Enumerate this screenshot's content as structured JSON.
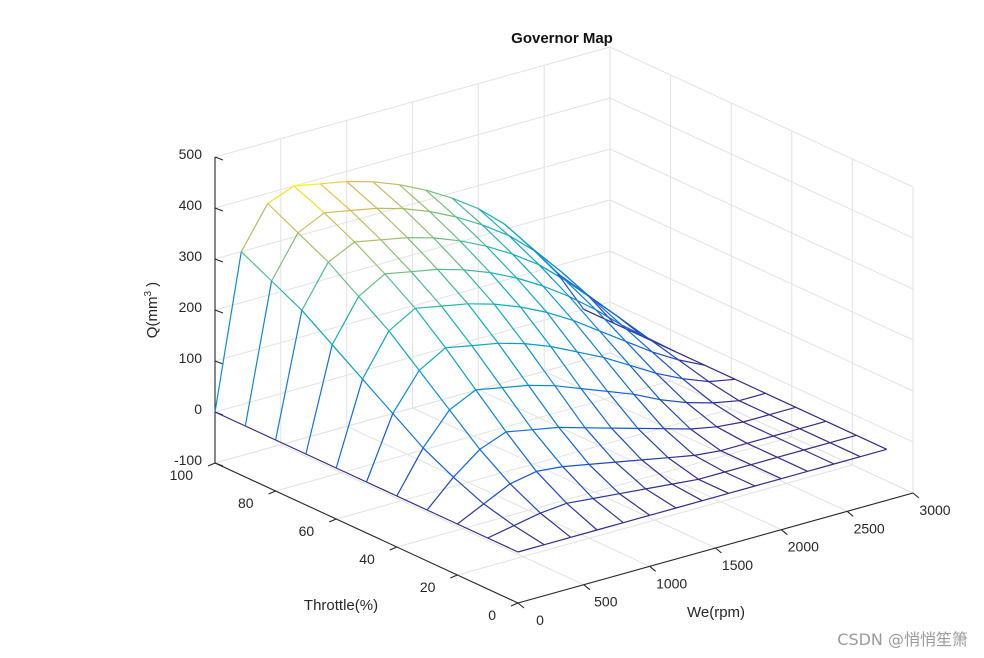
{
  "chart_data": {
    "type": "surface",
    "title": "Governor Map",
    "xlabel": "We(rpm)",
    "ylabel": "Throttle(%)",
    "zlabel": "Q(mm",
    "zlabel_sup": "3",
    "zlabel_end": " )",
    "xlim": [
      0,
      3000
    ],
    "ylim": [
      0,
      100
    ],
    "zlim": [
      -100,
      500
    ],
    "x_ticks": [
      "0",
      "500",
      "1000",
      "1500",
      "2000",
      "2500",
      "3000"
    ],
    "y_ticks": [
      "0",
      "20",
      "40",
      "60",
      "80",
      "100"
    ],
    "z_ticks": [
      "-100",
      "0",
      "100",
      "200",
      "300",
      "400",
      "500"
    ],
    "grid": true,
    "colormap": "parula",
    "speed_rpm": [
      0,
      200,
      400,
      600,
      800,
      1000,
      1200,
      1400,
      1600,
      1800,
      2000,
      2200,
      2400,
      2600,
      2800
    ],
    "throttle_pct": [
      0,
      10,
      20,
      30,
      40,
      50,
      60,
      70,
      80,
      90,
      100
    ],
    "fuel_q": [
      [
        0,
        0,
        0,
        0,
        0,
        0,
        0,
        0,
        0,
        0,
        0
      ],
      [
        0,
        10,
        25,
        50,
        80,
        120,
        160,
        200,
        240,
        270,
        300
      ],
      [
        0,
        20,
        50,
        90,
        140,
        190,
        240,
        280,
        320,
        350,
        380
      ],
      [
        0,
        25,
        60,
        110,
        165,
        220,
        270,
        310,
        345,
        375,
        400
      ],
      [
        0,
        20,
        55,
        100,
        155,
        210,
        260,
        300,
        335,
        365,
        390
      ],
      [
        0,
        15,
        45,
        90,
        145,
        200,
        250,
        290,
        325,
        355,
        380
      ],
      [
        0,
        10,
        35,
        75,
        130,
        185,
        235,
        275,
        310,
        340,
        365
      ],
      [
        0,
        5,
        25,
        60,
        110,
        165,
        215,
        255,
        290,
        320,
        345
      ],
      [
        0,
        0,
        15,
        45,
        90,
        140,
        190,
        230,
        265,
        295,
        320
      ],
      [
        0,
        0,
        5,
        30,
        70,
        115,
        160,
        200,
        235,
        265,
        290
      ],
      [
        0,
        0,
        0,
        15,
        45,
        85,
        125,
        165,
        200,
        230,
        255
      ],
      [
        0,
        0,
        0,
        5,
        25,
        55,
        90,
        125,
        155,
        185,
        210
      ],
      [
        0,
        0,
        0,
        0,
        10,
        30,
        55,
        80,
        105,
        130,
        150
      ],
      [
        0,
        0,
        0,
        0,
        0,
        10,
        25,
        40,
        55,
        70,
        85
      ],
      [
        0,
        0,
        0,
        0,
        0,
        0,
        0,
        0,
        0,
        0,
        0
      ]
    ]
  },
  "watermark": "CSDN @悄悄笙箫"
}
